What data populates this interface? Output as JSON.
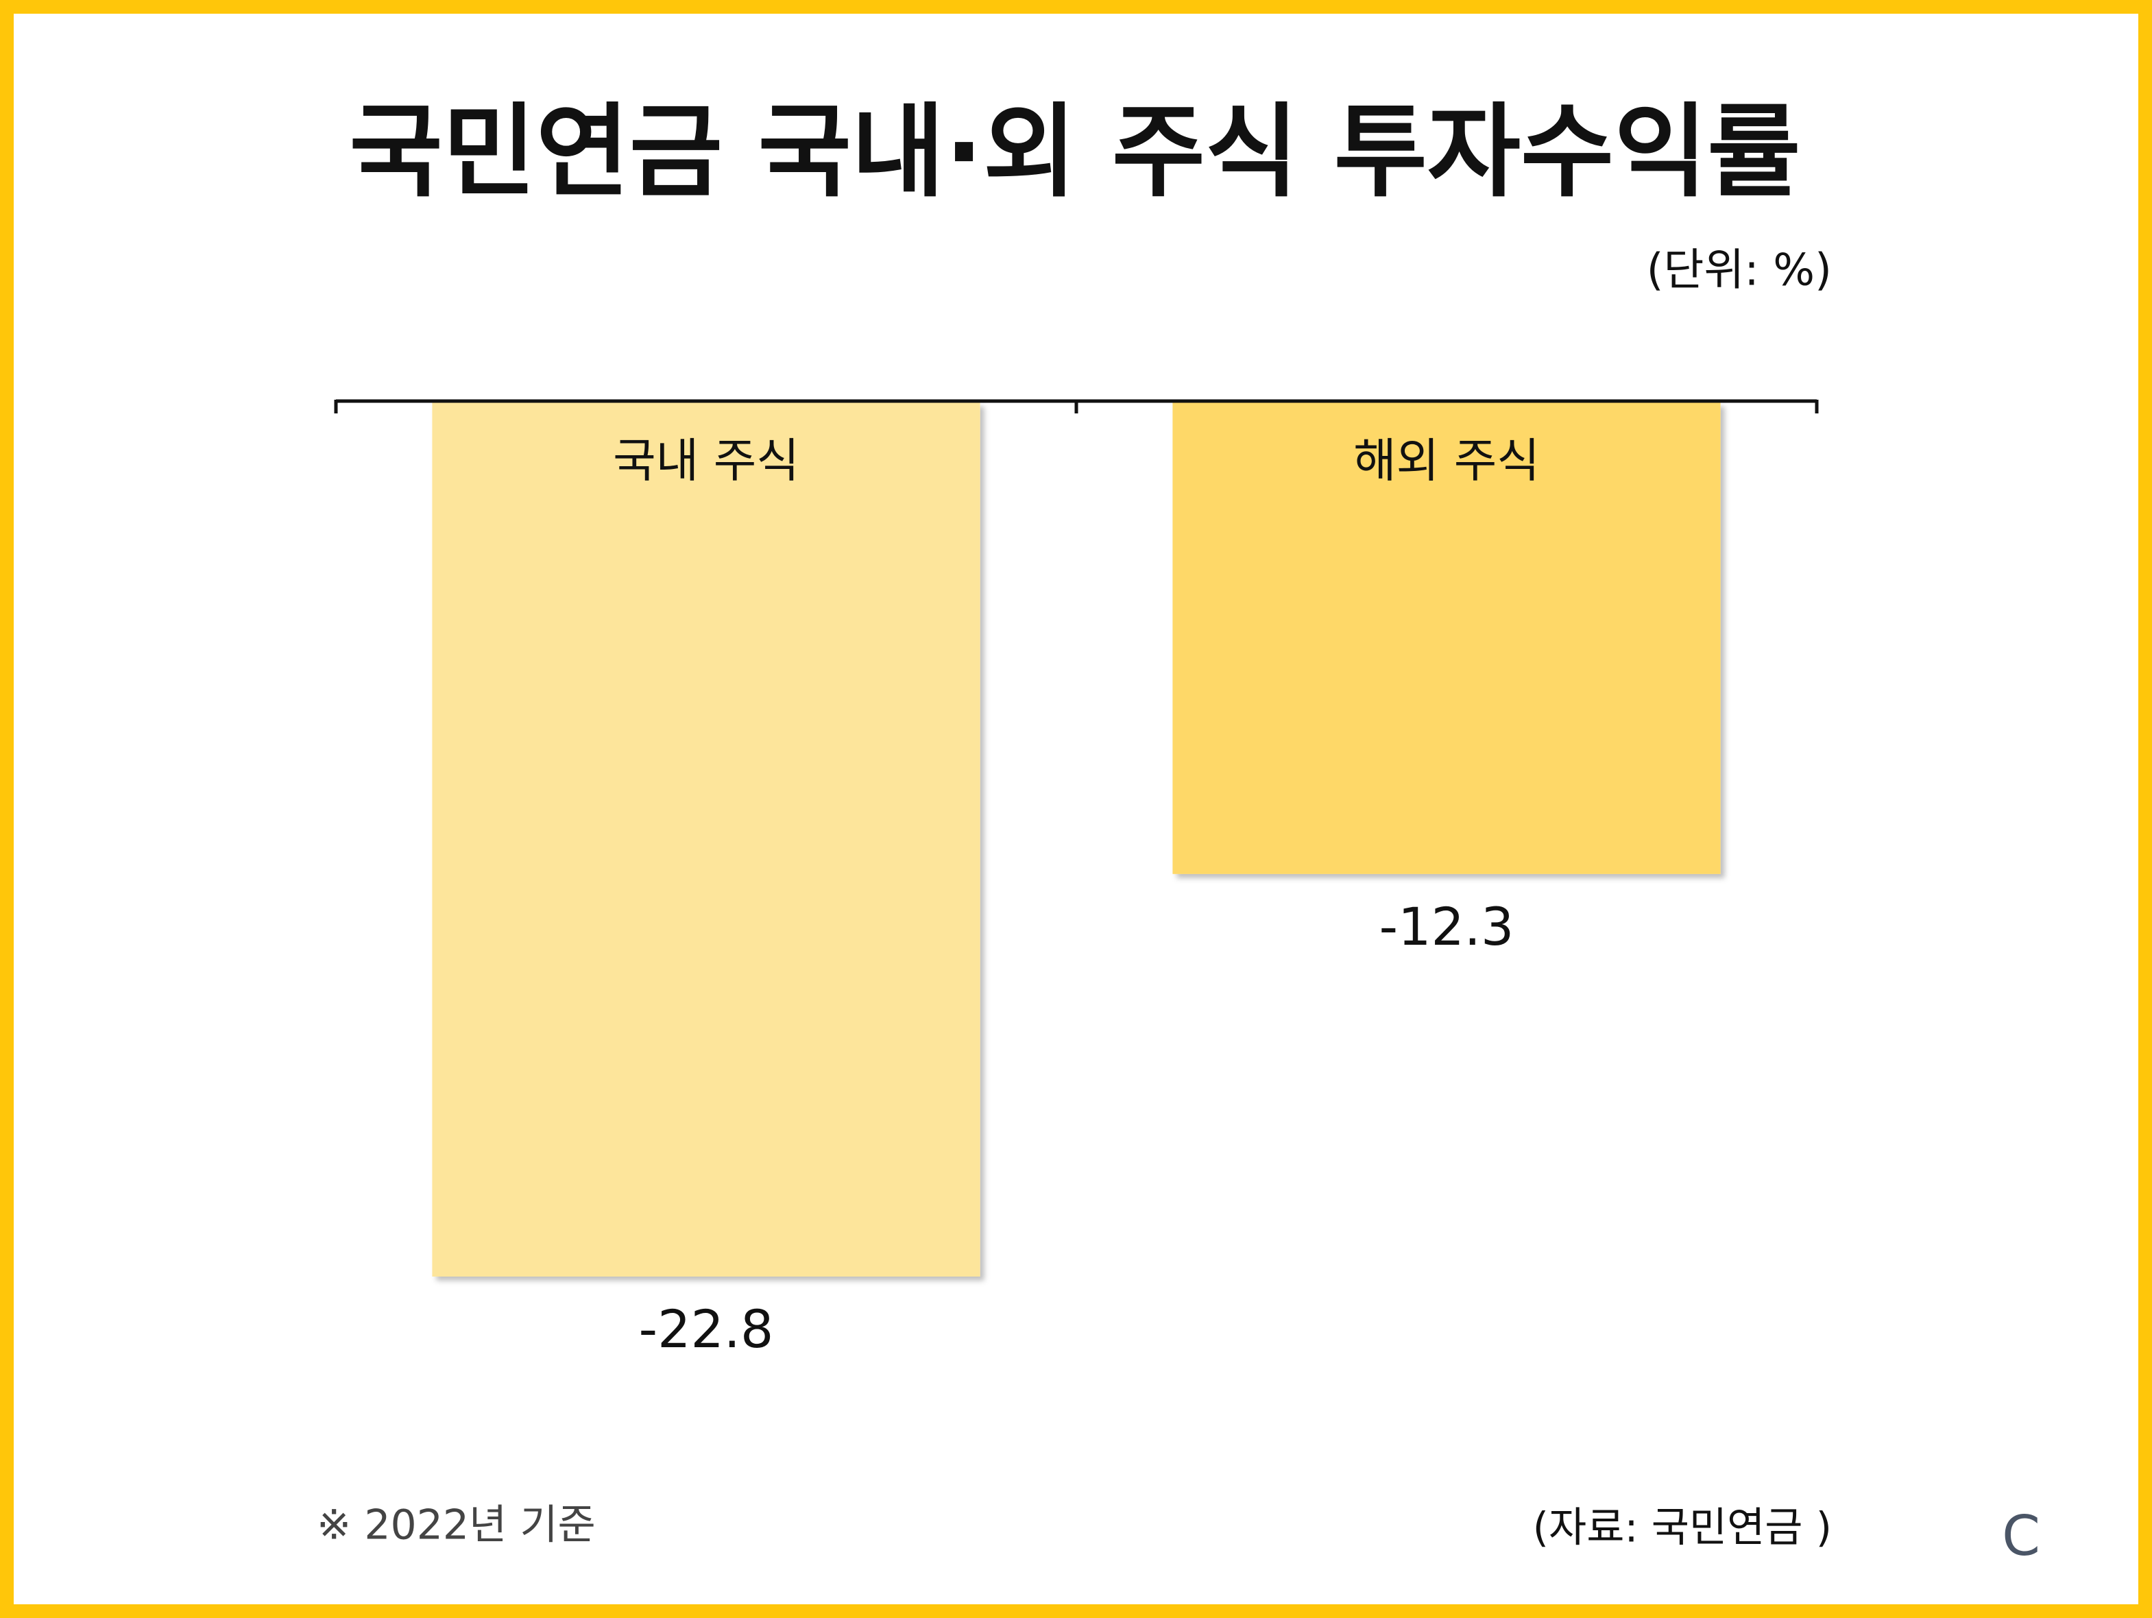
{
  "chart_data": {
    "type": "bar",
    "title": "국민연금 국내·외 주식 투자수익률",
    "unit_label": "(단위: %)",
    "categories": [
      "국내 주식",
      "해외 주식"
    ],
    "values": [
      -22.8,
      -12.3
    ],
    "colors": [
      "#fde59b",
      "#fed868"
    ],
    "ylim": [
      -25,
      0
    ],
    "footnote": "※ 2022년 기준",
    "source": "(자료: 국민연금 )",
    "logo": "C"
  }
}
